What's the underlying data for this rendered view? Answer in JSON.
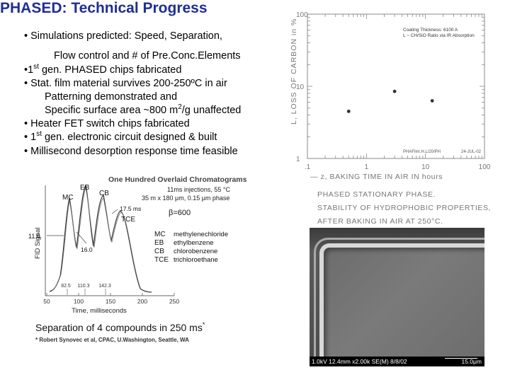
{
  "title": "PHASED: Technical Progress",
  "bullets": [
    {
      "mark": "•",
      "text": "Simulations predicted: Speed, Separation,"
    },
    {
      "mark": "",
      "text": "Flow control and # of Pre.Conc.Elements"
    },
    {
      "mark": "•",
      "pre": "1",
      "sup": "st",
      "text": " gen. PHASED chips fabricated"
    },
    {
      "mark": "•",
      "text": "Stat. film material survives 200-250ºC in air"
    },
    {
      "mark": "",
      "text": "Patterning demonstrated and"
    },
    {
      "mark": "",
      "text": "Specific surface area ~800 m",
      "sup": "2",
      "post": "/g unaffected"
    },
    {
      "mark": "•",
      "text": "Heater FET switch chips fabricated"
    },
    {
      "mark": "•",
      "pre": "1",
      "sup": "st",
      "text": " gen. electronic circuit designed & built"
    },
    {
      "mark": "•",
      "text": "Millisecond desorption response time feasible"
    }
  ],
  "chromatogram": {
    "title": "One Hundred Overlaid Chromatograms",
    "conditions": [
      "11ms injections, 55 °C",
      "35 m x 180 μm, 0.15 μm phase"
    ],
    "ylabel": "FID Signal",
    "xlabel": "Time, milliseconds",
    "y_marker": "11.8",
    "peak_labels": [
      "MC",
      "EB",
      "CB",
      "TCE"
    ],
    "annotations": [
      "16.0",
      "17.5 ms"
    ],
    "beta": "β=600",
    "legend": [
      {
        "abbr": "MC",
        "name": "methylenechloride"
      },
      {
        "abbr": "EB",
        "name": "ethylbenzene"
      },
      {
        "abbr": "CB",
        "name": "chlorobenzene"
      },
      {
        "abbr": "TCE",
        "name": "trichloroethane"
      }
    ],
    "retention_labels": [
      "82.5",
      "110.3",
      "142.3"
    ],
    "x_ticks": [
      "50",
      "100",
      "150",
      "200",
      "250"
    ],
    "caption": "Separation of 4 compounds in 250 ms",
    "caption_mark": "*",
    "footnote": "* Robert Synovec et al, CPAC, U.Washington, Seattle, WA"
  },
  "chart_data": {
    "type": "scatter",
    "xlabel": "z, BAKING TIME IN AIR IN hours",
    "ylabel": "L, LOSS OF CARBON in %",
    "x_scale": "log",
    "y_scale": "log",
    "xlim": [
      0.1,
      100
    ],
    "ylim": [
      1,
      100
    ],
    "x_ticks": [
      ".1",
      "1",
      "10",
      "100"
    ],
    "y_ticks": [
      "100",
      "10",
      "1"
    ],
    "annotation": [
      "Coating Thickness: 6100 A",
      "L ~ CH/SiO Ratio via IR Absorption"
    ],
    "footer": [
      "PHAFilm.H.L/20/PH",
      "24-JUL-02"
    ],
    "points": [
      {
        "x": 0.5,
        "y": 4.5
      },
      {
        "x": 3,
        "y": 8.5
      },
      {
        "x": 13,
        "y": 6.3
      }
    ]
  },
  "carbon_caption": [
    "PHASED STATIONARY PHASE.",
    "STABILITY OF HYDROPHOBIC PROPERTIES,",
    "AFTER BAKING IN AIR AT 250°C."
  ],
  "sem": {
    "info": "1.0kV 12.4mm x2.00k SE(M) 8/8/02",
    "scale": "15.0μm"
  }
}
